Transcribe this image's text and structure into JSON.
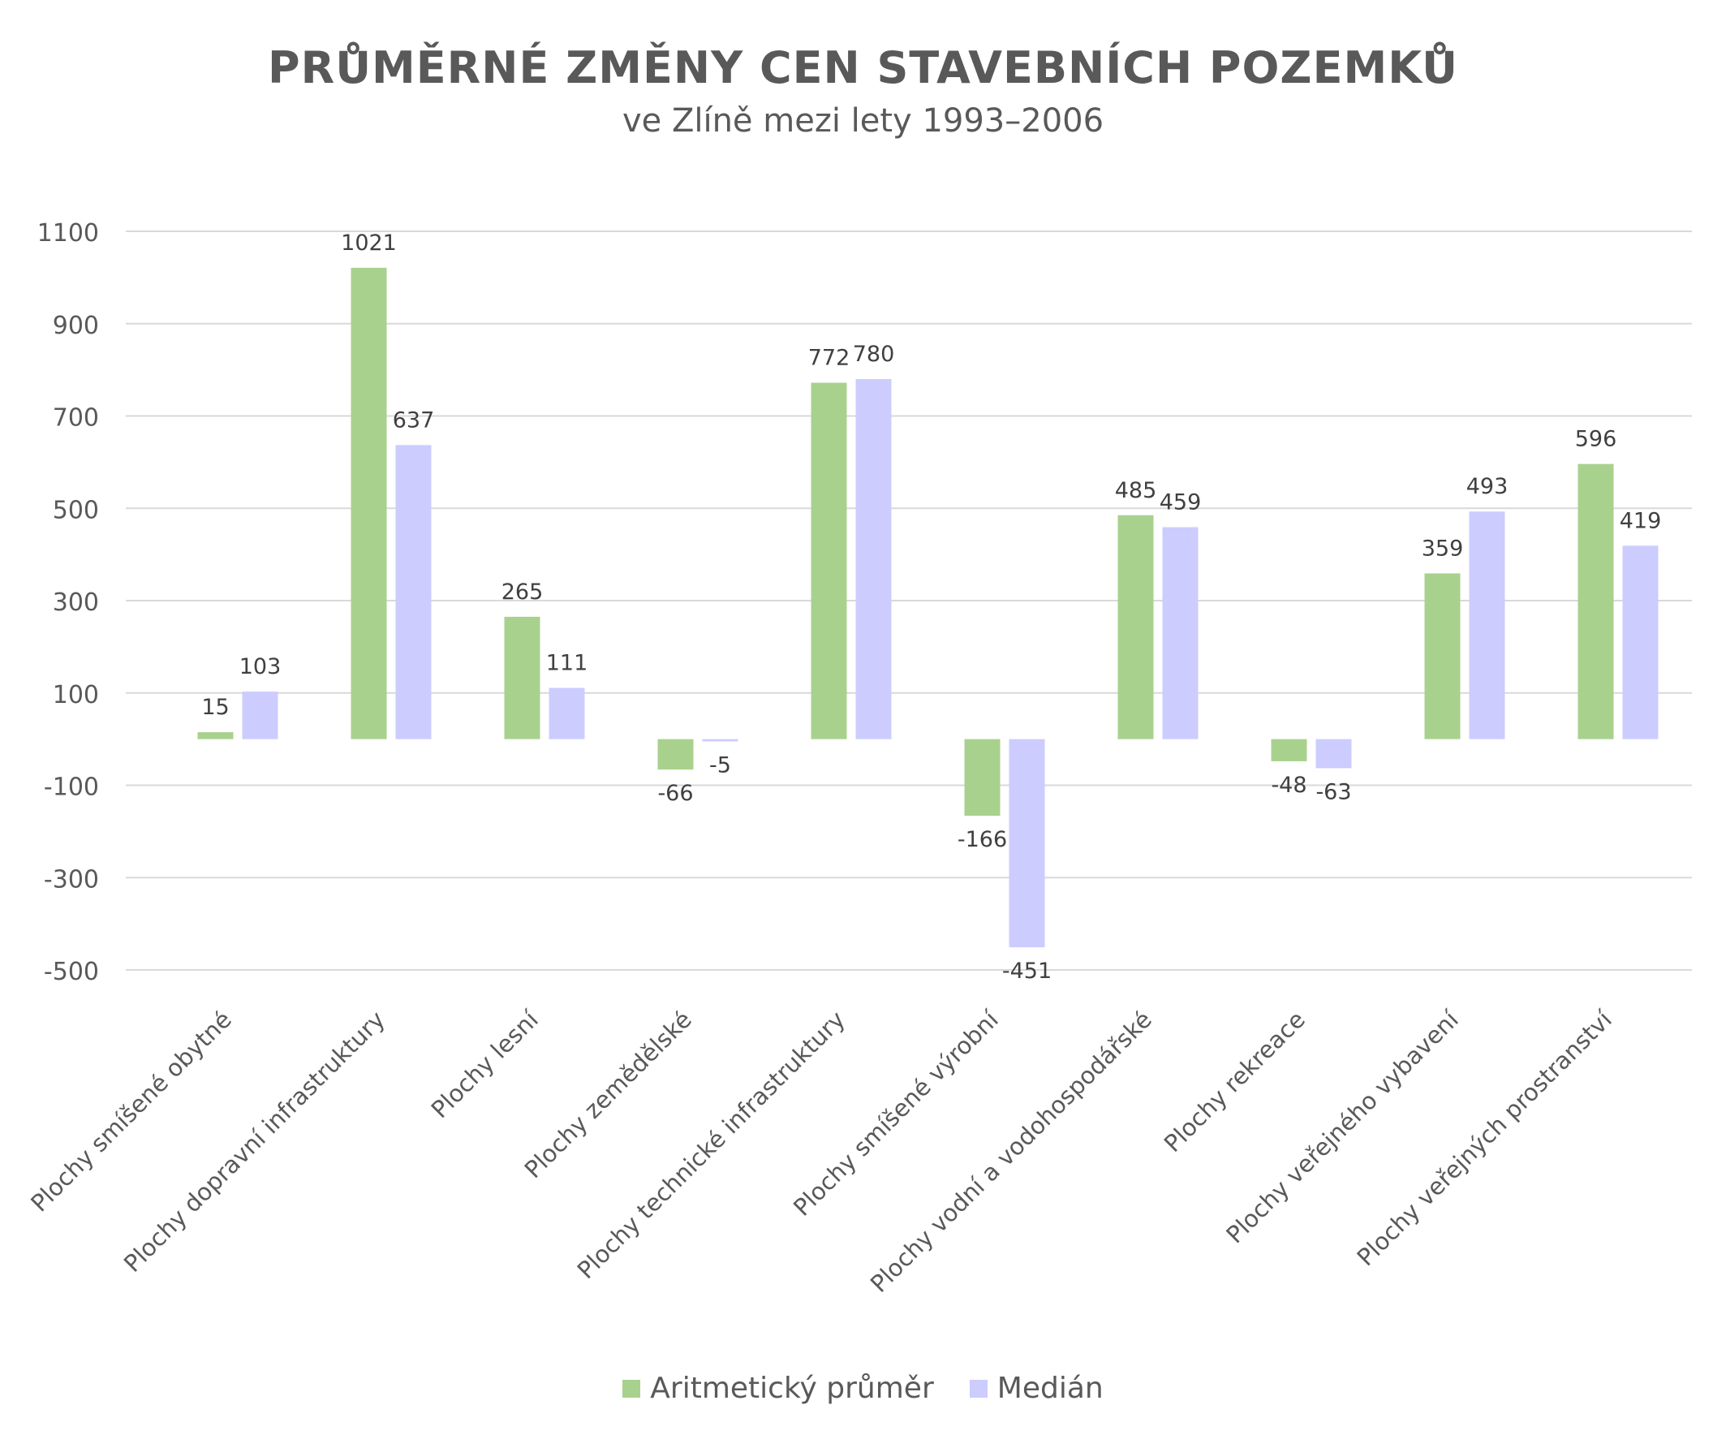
{
  "chart_data": {
    "type": "bar",
    "title": "PRŮMĚRNÉ ZMĚNY CEN STAVEBNÍCH POZEMKŮ",
    "subtitle": "ve Zlíně mezi lety 1993–2006",
    "categories": [
      "Plochy smíšené obytné",
      "Plochy dopravní infrastruktury",
      "Plochy lesní",
      "Plochy zemědělské",
      "Plochy technické infrastruktury",
      "Plochy smíšené výrobní",
      "Plochy vodní a vodohospodářské",
      "Plochy rekreace",
      "Plochy veřejného vybavení",
      "Plochy veřejných prostranství"
    ],
    "series": [
      {
        "name": "Aritmetický průměr",
        "color": "#a9d18e",
        "values": [
          15,
          1021,
          265,
          -66,
          772,
          -166,
          485,
          -48,
          359,
          596
        ]
      },
      {
        "name": "Medián",
        "color": "#ccccff",
        "values": [
          103,
          637,
          111,
          -5,
          780,
          -451,
          459,
          -63,
          493,
          419
        ]
      }
    ],
    "yticks": [
      "1100",
      "900",
      "700",
      "500",
      "300",
      "100",
      "-100",
      "-300",
      "-500"
    ],
    "ylim": [
      -500,
      1100
    ],
    "grid": true,
    "legend_position": "bottom"
  }
}
